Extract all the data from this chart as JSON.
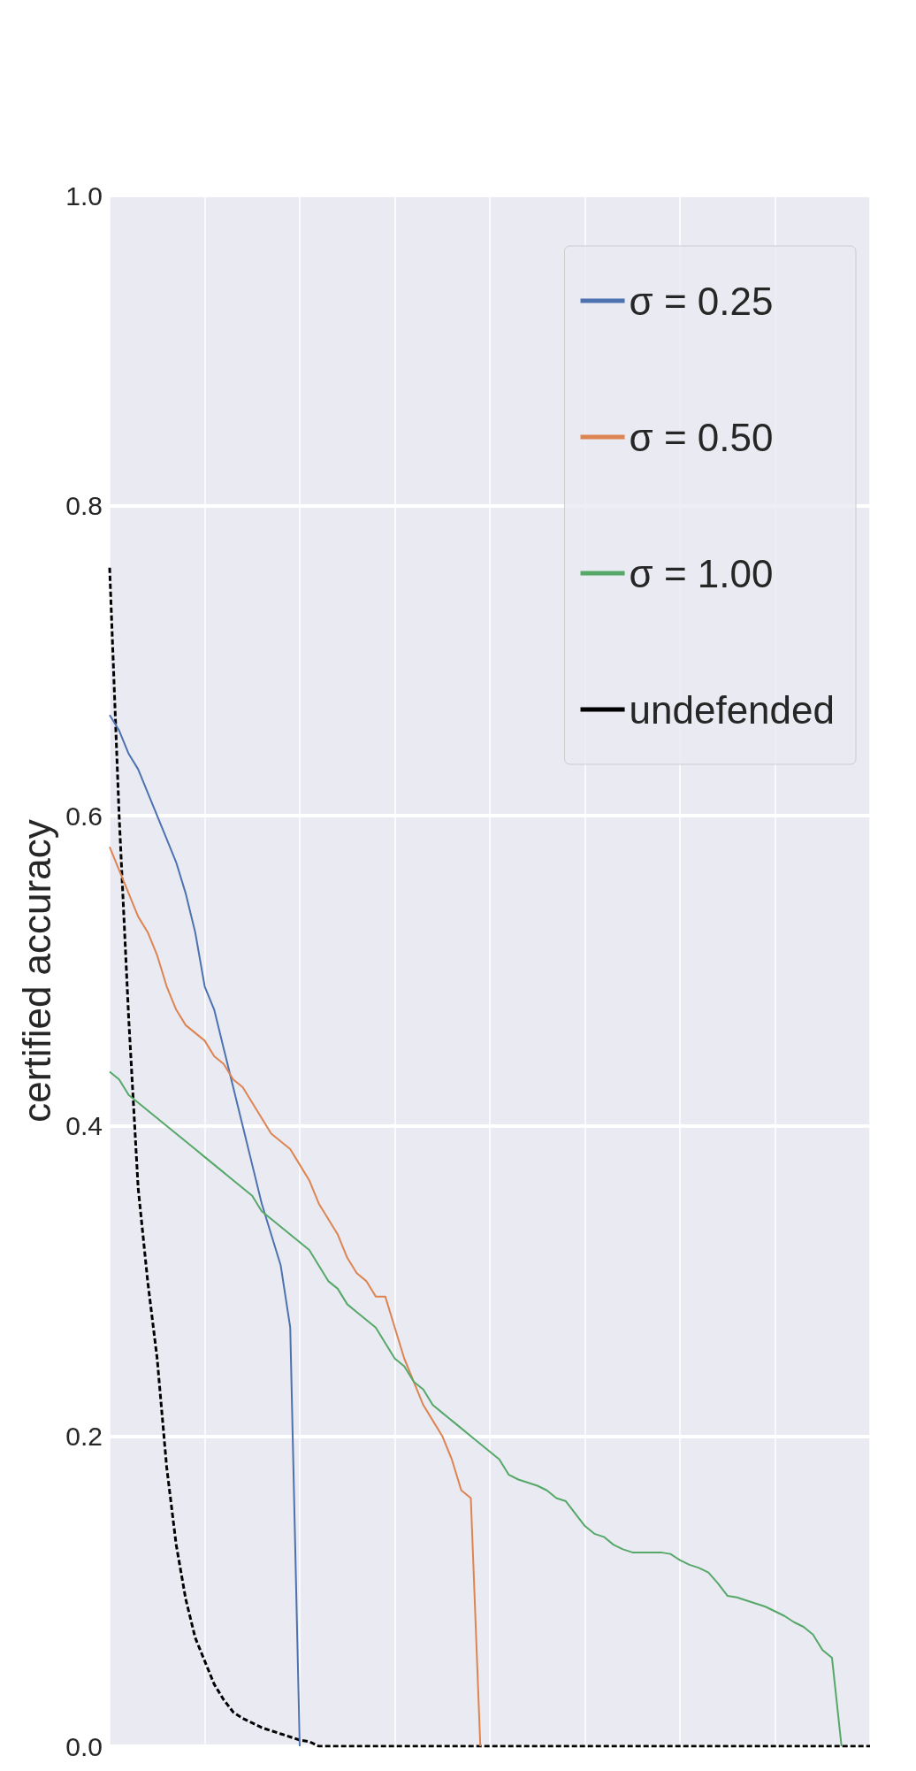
{
  "chart_data": {
    "type": "line",
    "ylabel": "certified accuracy",
    "categories": [
      null,
      null,
      null,
      null,
      null,
      null,
      null,
      null,
      null,
      null,
      null,
      null,
      null,
      null,
      null,
      null,
      null,
      null,
      null,
      null,
      null,
      null,
      null,
      null,
      null,
      null,
      null,
      null,
      null,
      null,
      null,
      null,
      null,
      null,
      null,
      null,
      null,
      null,
      null,
      null,
      null,
      null,
      null,
      null,
      null,
      null,
      null,
      null,
      null,
      null,
      null,
      null,
      null,
      null,
      null,
      null,
      null,
      null,
      null,
      null,
      null,
      null,
      null,
      null,
      null,
      null,
      null,
      null,
      null,
      null,
      null,
      null,
      null,
      null,
      null,
      null,
      null,
      null,
      null,
      null,
      null
    ],
    "series": [
      {
        "name": "σ = 0.25",
        "color": "#4c72b0",
        "line_style": "solid",
        "values": [
          0.665,
          0.655,
          0.64,
          0.63,
          0.615,
          0.6,
          0.585,
          0.57,
          0.55,
          0.525,
          0.49,
          0.475,
          0.45,
          0.425,
          0.4,
          0.375,
          0.35,
          0.33,
          0.31,
          0.27,
          0,
          null,
          null,
          null,
          null,
          null,
          null,
          null,
          null,
          null,
          null,
          null,
          null,
          null,
          null,
          null,
          null,
          null,
          null,
          null,
          null,
          null,
          null,
          null,
          null,
          null,
          null,
          null,
          null,
          null,
          null,
          null,
          null,
          null,
          null,
          null,
          null,
          null,
          null,
          null,
          null,
          null,
          null,
          null,
          null,
          null,
          null,
          null,
          null,
          null,
          null,
          null,
          null,
          null,
          null,
          null,
          null,
          null,
          null,
          null,
          null
        ]
      },
      {
        "name": "σ = 0.50",
        "color": "#dd8452",
        "line_style": "solid",
        "values": [
          0.58,
          0.565,
          0.55,
          0.535,
          0.525,
          0.51,
          0.49,
          0.475,
          0.465,
          0.46,
          0.455,
          0.445,
          0.44,
          0.43,
          0.425,
          0.415,
          0.405,
          0.395,
          0.39,
          0.385,
          0.375,
          0.365,
          0.35,
          0.34,
          0.33,
          0.315,
          0.305,
          0.3,
          0.29,
          0.29,
          0.27,
          0.25,
          0.235,
          0.22,
          0.21,
          0.2,
          0.185,
          0.165,
          0.16,
          0,
          null,
          null,
          null,
          null,
          null,
          null,
          null,
          null,
          null,
          null,
          null,
          null,
          null,
          null,
          null,
          null,
          null,
          null,
          null,
          null,
          null,
          null,
          null,
          null,
          null,
          null,
          null,
          null,
          null,
          null,
          null,
          null,
          null,
          null,
          null,
          null,
          null,
          null,
          null,
          null,
          null
        ]
      },
      {
        "name": "σ = 1.00",
        "color": "#55a868",
        "line_style": "solid",
        "values": [
          0.435,
          0.43,
          0.42,
          0.415,
          0.41,
          0.405,
          0.4,
          0.395,
          0.39,
          0.385,
          0.38,
          0.375,
          0.37,
          0.365,
          0.36,
          0.355,
          0.345,
          0.34,
          0.335,
          0.33,
          0.325,
          0.32,
          0.31,
          0.3,
          0.295,
          0.285,
          0.28,
          0.275,
          0.27,
          0.26,
          0.25,
          0.245,
          0.235,
          0.23,
          0.22,
          0.215,
          0.21,
          0.205,
          0.2,
          0.195,
          0.19,
          0.185,
          0.175,
          0.172,
          0.17,
          0.168,
          0.165,
          0.16,
          0.158,
          0.15,
          0.142,
          0.137,
          0.135,
          0.13,
          0.127,
          0.125,
          0.125,
          0.125,
          0.125,
          0.124,
          0.12,
          0.117,
          0.115,
          0.112,
          0.105,
          0.097,
          0.096,
          0.094,
          0.092,
          0.09,
          0.087,
          0.084,
          0.08,
          0.077,
          0.072,
          0.062,
          0.057,
          0,
          null,
          null,
          null
        ]
      },
      {
        "name": "undefended",
        "color": "#000000",
        "line_style": "dashed",
        "values": [
          0.76,
          0.6,
          0.47,
          0.36,
          0.3,
          0.25,
          0.18,
          0.13,
          0.095,
          0.07,
          0.055,
          0.04,
          0.03,
          0.022,
          0.018,
          0.015,
          0.012,
          0.01,
          0.008,
          0.006,
          0.004,
          0.003,
          0,
          0,
          0,
          0,
          0,
          0,
          0,
          0,
          0,
          0,
          0,
          0,
          0,
          0,
          0,
          0,
          0,
          0,
          0,
          0,
          0,
          0,
          0,
          0,
          0,
          0,
          0,
          0,
          0,
          0,
          0,
          0,
          0,
          0,
          0,
          0,
          0,
          0,
          0,
          0,
          0,
          0,
          0,
          0,
          0,
          0,
          0,
          0,
          0,
          0,
          0,
          0,
          0,
          0,
          0,
          0,
          0,
          0,
          0
        ]
      }
    ],
    "ylim": [
      0,
      1
    ],
    "yticks": [
      {
        "value": 0,
        "label": "0.0"
      },
      {
        "value": 0.2,
        "label": "0.2"
      },
      {
        "value": 0.4,
        "label": "0.4"
      },
      {
        "value": 0.6,
        "label": "0.6"
      },
      {
        "value": 0.8,
        "label": "0.8"
      },
      {
        "value": 1,
        "label": "1.0"
      }
    ],
    "tick_labels": "y",
    "grid": true,
    "legend": "top right",
    "marker": "none"
  }
}
